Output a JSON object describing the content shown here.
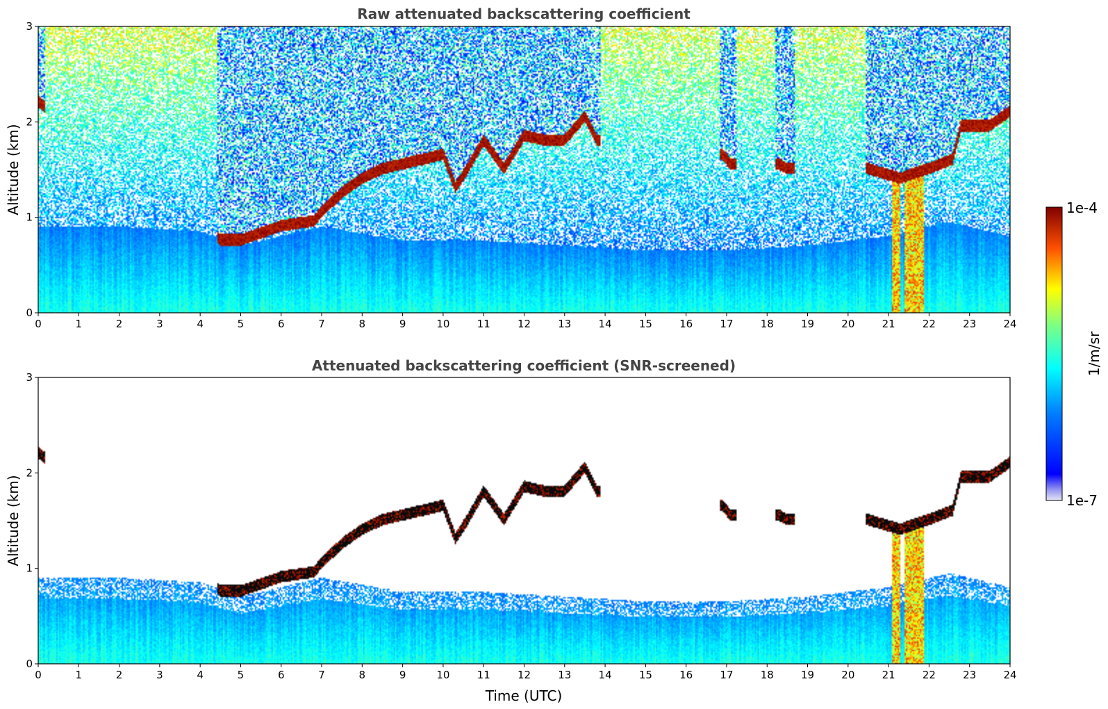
{
  "chart_data": [
    {
      "type": "heatmap",
      "title": "Raw attenuated backscattering coefficient",
      "xlabel": "",
      "ylabel": "Altitude (km)",
      "xlim": [
        0,
        24
      ],
      "ylim": [
        0,
        3
      ],
      "xticks": [
        "0",
        "1",
        "2",
        "3",
        "4",
        "5",
        "6",
        "7",
        "8",
        "9",
        "10",
        "11",
        "12",
        "13",
        "14",
        "15",
        "16",
        "17",
        "18",
        "19",
        "20",
        "21",
        "22",
        "23",
        "24"
      ],
      "yticks": [
        "0",
        "1",
        "2",
        "3"
      ],
      "screened": false
    },
    {
      "type": "heatmap",
      "title": "Attenuated backscattering coefficient (SNR-screened)",
      "xlabel": "Time (UTC)",
      "ylabel": "Altitude (km)",
      "xlim": [
        0,
        24
      ],
      "ylim": [
        0,
        3
      ],
      "xticks": [
        "0",
        "1",
        "2",
        "3",
        "4",
        "5",
        "6",
        "7",
        "8",
        "9",
        "10",
        "11",
        "12",
        "13",
        "14",
        "15",
        "16",
        "17",
        "18",
        "19",
        "20",
        "21",
        "22",
        "23",
        "24"
      ],
      "yticks": [
        "0",
        "1",
        "2",
        "3"
      ],
      "screened": true
    }
  ],
  "colorbar": {
    "label": "1/m/sr",
    "max_label": "1e-4",
    "min_label": "1e-7",
    "scale": "log",
    "colormap": "jet"
  },
  "features": {
    "cloud_base_km": [
      [
        0.0,
        2.15
      ],
      [
        4.5,
        0.7
      ],
      [
        5.0,
        0.7
      ],
      [
        6.0,
        0.85
      ],
      [
        6.8,
        0.9
      ],
      [
        7.0,
        1.0
      ],
      [
        7.5,
        1.2
      ],
      [
        8.0,
        1.35
      ],
      [
        8.5,
        1.45
      ],
      [
        9.0,
        1.5
      ],
      [
        9.5,
        1.55
      ],
      [
        10.0,
        1.6
      ],
      [
        10.3,
        1.25
      ],
      [
        10.6,
        1.45
      ],
      [
        11.0,
        1.75
      ],
      [
        11.5,
        1.45
      ],
      [
        12.0,
        1.8
      ],
      [
        12.5,
        1.75
      ],
      [
        13.0,
        1.75
      ],
      [
        13.5,
        2.0
      ],
      [
        13.8,
        1.75
      ],
      [
        16.9,
        1.6
      ],
      [
        17.1,
        1.5
      ],
      [
        18.3,
        1.5
      ],
      [
        18.5,
        1.45
      ],
      [
        20.5,
        1.45
      ],
      [
        21.3,
        1.35
      ],
      [
        22.0,
        1.45
      ],
      [
        22.6,
        1.55
      ],
      [
        22.8,
        1.9
      ],
      [
        23.5,
        1.9
      ],
      [
        24.0,
        2.05
      ]
    ],
    "precipitation_shafts_hours": [
      [
        21.1,
        21.3
      ],
      [
        21.4,
        21.9
      ]
    ],
    "boundary_layer_top_km": [
      [
        0,
        0.9
      ],
      [
        2,
        0.9
      ],
      [
        4,
        0.85
      ],
      [
        5,
        0.7
      ],
      [
        7,
        0.9
      ],
      [
        9,
        0.75
      ],
      [
        11,
        0.75
      ],
      [
        13,
        0.7
      ],
      [
        15,
        0.65
      ],
      [
        17,
        0.65
      ],
      [
        19,
        0.7
      ],
      [
        21,
        0.8
      ],
      [
        22.5,
        0.95
      ],
      [
        24,
        0.8
      ]
    ]
  }
}
